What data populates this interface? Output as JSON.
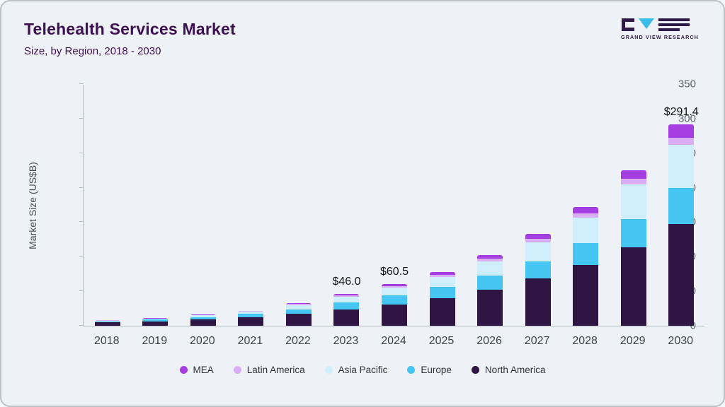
{
  "header": {
    "title": "Telehealth Services Market",
    "subtitle": "Size, by Region, 2018 - 2030",
    "logo_text": "GRAND VIEW RESEARCH"
  },
  "colors": {
    "brand_purple": "#3c1053",
    "logo_cyan": "#38bdea",
    "logo_dark": "#2e1a47"
  },
  "chart_data": {
    "type": "bar",
    "variant": "stacked",
    "title": "Telehealth Services Market",
    "subtitle": "Size, by Region, 2018 - 2030",
    "ylabel": "Market Size (US$B)",
    "ylim": [
      0,
      350
    ],
    "yticks": [
      0,
      50,
      100,
      150,
      200,
      250,
      300,
      350
    ],
    "grid": false,
    "legend_position": "bottom",
    "categories": [
      "2018",
      "2019",
      "2020",
      "2021",
      "2022",
      "2023",
      "2024",
      "2025",
      "2026",
      "2027",
      "2028",
      "2029",
      "2030"
    ],
    "series": [
      {
        "name": "North America",
        "color": "#2e1543",
        "values": [
          5,
          6.5,
          9,
          12,
          17,
          24,
          31,
          40,
          52,
          69,
          88,
          114,
          147
        ]
      },
      {
        "name": "Europe",
        "color": "#45c6f2",
        "values": [
          1.5,
          2.5,
          3.5,
          5,
          7,
          10,
          13,
          16,
          21,
          24,
          32,
          41,
          53
        ]
      },
      {
        "name": "Asia Pacific",
        "color": "#cfeefb",
        "values": [
          1,
          1.5,
          2.5,
          4,
          6,
          8,
          11,
          15,
          20,
          28,
          37,
          50,
          62
        ]
      },
      {
        "name": "Latin America",
        "color": "#d9aef3",
        "values": [
          0.25,
          0.25,
          0.5,
          0.5,
          1.5,
          2,
          2.5,
          3,
          4,
          5,
          6,
          8,
          10.4
        ]
      },
      {
        "name": "MEA",
        "color": "#a43ee0",
        "values": [
          0.25,
          0.25,
          0.5,
          0.5,
          1.5,
          2,
          3,
          4,
          5,
          7,
          9,
          12,
          19
        ]
      }
    ],
    "totals": [
      8,
      11,
      16,
      22,
      33,
      46.0,
      60.5,
      78,
      102,
      133,
      172,
      225,
      291.4
    ],
    "annotations": [
      {
        "category": "2023",
        "label": "$46.0"
      },
      {
        "category": "2024",
        "label": "$60.5"
      },
      {
        "category": "2030",
        "label": "$291.4"
      }
    ],
    "legend": [
      "MEA",
      "Latin America",
      "Asia Pacific",
      "Europe",
      "North America"
    ]
  }
}
